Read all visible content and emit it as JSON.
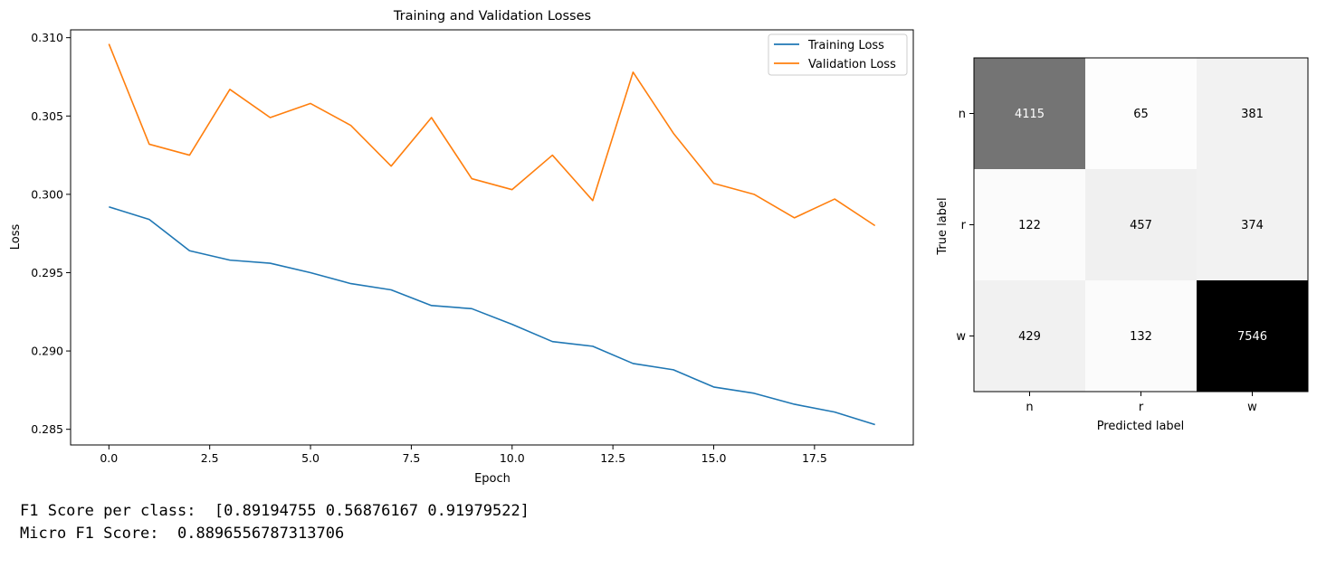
{
  "chart_data": [
    {
      "type": "line",
      "title": "Training and Validation Losses",
      "xlabel": "Epoch",
      "ylabel": "Loss",
      "xlim": [
        -0.95,
        19.95
      ],
      "ylim": [
        0.284,
        0.3105
      ],
      "xticks": [
        "0.0",
        "2.5",
        "5.0",
        "7.5",
        "10.0",
        "12.5",
        "15.0",
        "17.5"
      ],
      "yticks": [
        "0.285",
        "0.290",
        "0.295",
        "0.300",
        "0.305",
        "0.310"
      ],
      "legend": "top-right",
      "grid": false,
      "x": [
        0,
        1,
        2,
        3,
        4,
        5,
        6,
        7,
        8,
        9,
        10,
        11,
        12,
        13,
        14,
        15,
        16,
        17,
        18,
        19
      ],
      "series": [
        {
          "name": "Training Loss",
          "color": "#1f77b4",
          "values": [
            0.2992,
            0.2984,
            0.2964,
            0.2958,
            0.2956,
            0.295,
            0.2943,
            0.2939,
            0.2929,
            0.2927,
            0.2917,
            0.2906,
            0.2903,
            0.2892,
            0.2888,
            0.2877,
            0.2873,
            0.2866,
            0.2861,
            0.2853
          ]
        },
        {
          "name": "Validation Loss",
          "color": "#ff7f0e",
          "values": [
            0.3096,
            0.3032,
            0.3025,
            0.3067,
            0.3049,
            0.3058,
            0.3044,
            0.3018,
            0.3049,
            0.301,
            0.3003,
            0.3025,
            0.2996,
            0.3078,
            0.3039,
            0.3007,
            0.3,
            0.2985,
            0.2997,
            0.298
          ]
        }
      ]
    },
    {
      "type": "heatmap",
      "title": "",
      "xlabel": "Predicted label",
      "ylabel": "True label",
      "x_categories": [
        "n",
        "r",
        "w"
      ],
      "y_categories": [
        "n",
        "r",
        "w"
      ],
      "colormap": "greys",
      "vmax": 7546,
      "values": [
        [
          4115,
          65,
          381
        ],
        [
          122,
          457,
          374
        ],
        [
          429,
          132,
          7546
        ]
      ]
    }
  ],
  "output": {
    "line1": "F1 Score per class:  [0.89194755 0.56876167 0.91979522]",
    "line2": "Micro F1 Score:  0.8896556787313706"
  }
}
